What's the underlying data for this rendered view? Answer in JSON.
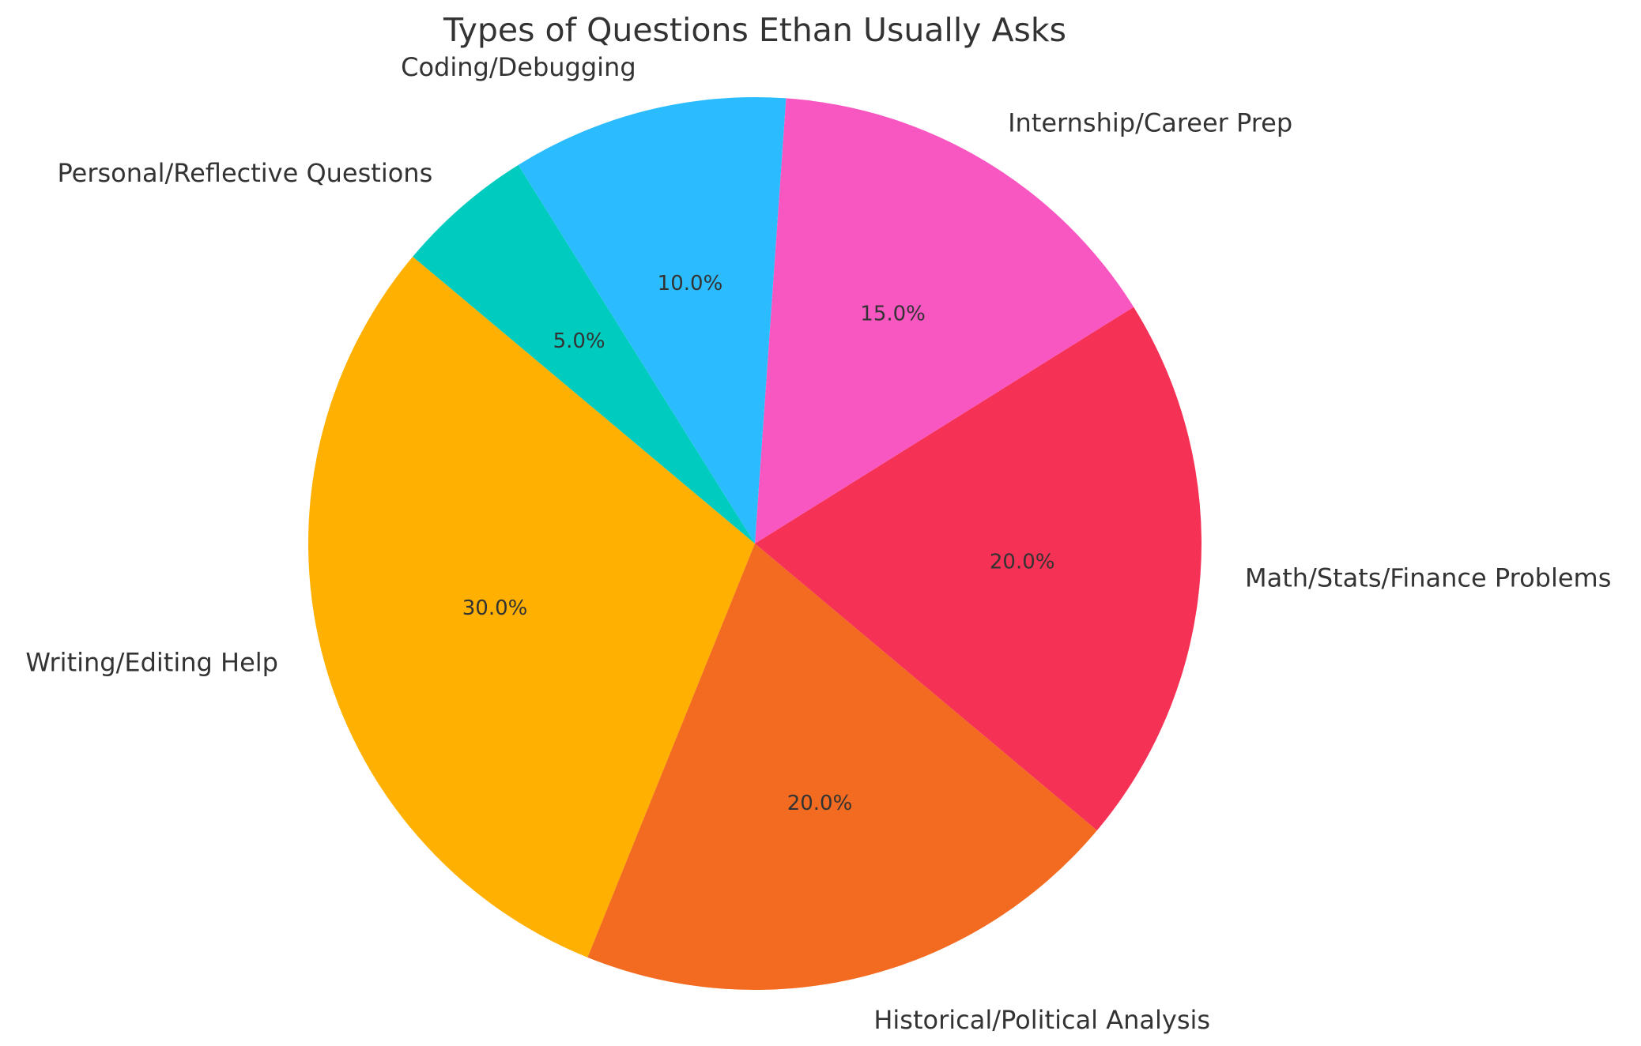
{
  "chart_data": {
    "type": "pie",
    "title": "Types of Questions Ethan Usually Asks",
    "start_angle_deg": 140,
    "direction": "counterclockwise",
    "slices": [
      {
        "label": "Writing/Editing Help",
        "value": 30,
        "pct_label": "30.0%",
        "color": "#FFB000"
      },
      {
        "label": "Historical/Political Analysis",
        "value": 20,
        "pct_label": "20.0%",
        "color": "#F26B21"
      },
      {
        "label": "Math/Stats/Finance Problems",
        "value": 20,
        "pct_label": "20.0%",
        "color": "#F53255"
      },
      {
        "label": "Internship/Career Prep",
        "value": 15,
        "pct_label": "15.0%",
        "color": "#F857C1"
      },
      {
        "label": "Coding/Debugging",
        "value": 10,
        "pct_label": "10.0%",
        "color": "#2BBCFF"
      },
      {
        "label": "Personal/Reflective Questions",
        "value": 5,
        "pct_label": "5.0%",
        "color": "#00CBBF"
      }
    ]
  }
}
